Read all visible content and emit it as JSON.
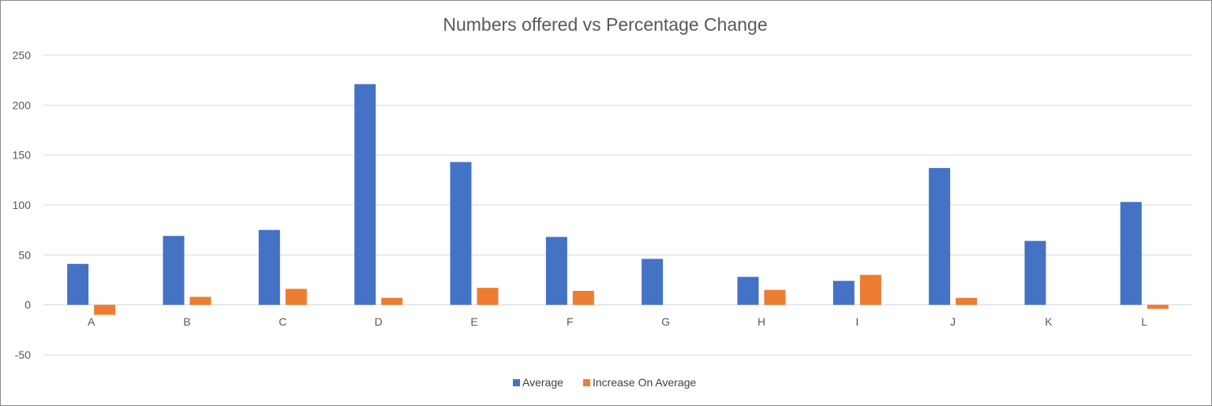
{
  "chart_data": {
    "type": "bar",
    "title": "Numbers offered vs Percentage Change",
    "xlabel": "",
    "ylabel": "",
    "categories": [
      "A",
      "B",
      "C",
      "D",
      "E",
      "F",
      "G",
      "H",
      "I",
      "J",
      "K",
      "L"
    ],
    "series": [
      {
        "name": "Average",
        "color": "#4472C4",
        "values": [
          41,
          69,
          75,
          221,
          143,
          68,
          46,
          28,
          24,
          137,
          64,
          103
        ]
      },
      {
        "name": "Increase On Average",
        "color": "#ED7D31",
        "values": [
          -10,
          8,
          16,
          7,
          17,
          14,
          0,
          15,
          30,
          7,
          0,
          -4
        ]
      }
    ],
    "ylim": [
      -50,
      250
    ],
    "yticks": [
      -50,
      0,
      50,
      100,
      150,
      200,
      250
    ],
    "grid": true,
    "legend_position": "bottom"
  }
}
